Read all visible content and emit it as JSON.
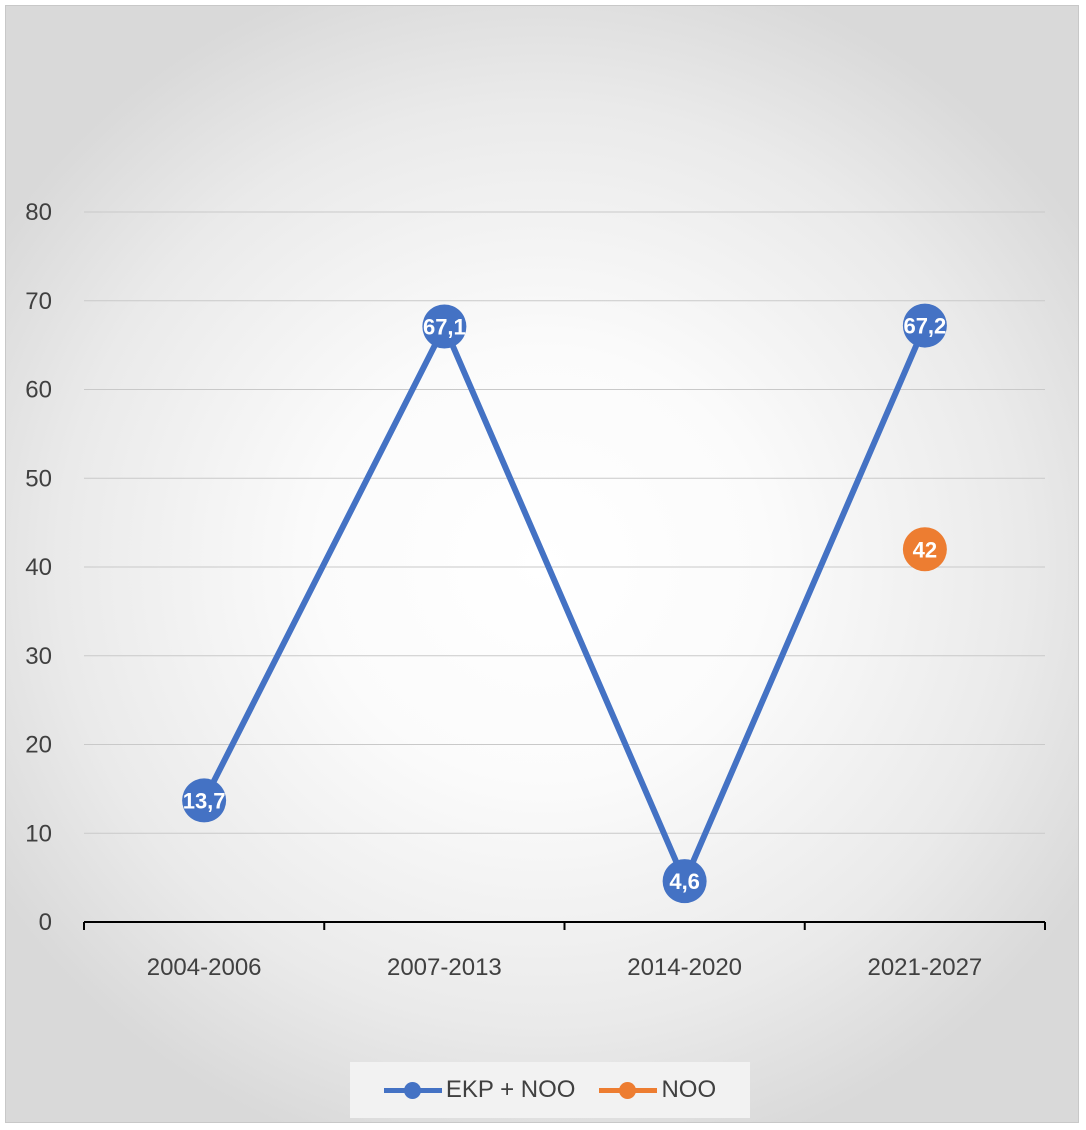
{
  "chart_data": {
    "type": "line",
    "categories": [
      "2004-2006",
      "2007-2013",
      "2014-2020",
      "2021-2027"
    ],
    "series": [
      {
        "name": "EKP + NOO",
        "color": "#4472C4",
        "values": [
          13.7,
          67.1,
          4.6,
          67.2
        ],
        "labels": [
          "13,7",
          "67,1",
          "4,6",
          "67,2"
        ]
      },
      {
        "name": "NOO",
        "color": "#ED7D31",
        "values": [
          null,
          null,
          null,
          42
        ],
        "labels": [
          "",
          "",
          "",
          "42"
        ]
      }
    ],
    "ylim": [
      0,
      80
    ],
    "yticks": [
      "0",
      "10",
      "20",
      "30",
      "40",
      "50",
      "60",
      "70",
      "80"
    ],
    "title": "",
    "xlabel": "",
    "ylabel": "",
    "grid": true,
    "legend_position": "bottom"
  }
}
